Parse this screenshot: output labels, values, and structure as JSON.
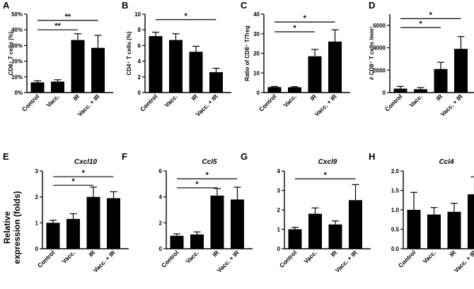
{
  "figure": {
    "shared_ylabel_line1": "Relative",
    "shared_ylabel_line2": "expression (folds)",
    "bar_color": "#000000"
  },
  "chart_data": [
    {
      "panel": "A",
      "type": "bar",
      "title": "",
      "ylabel": "CD8⁺ T cells (%)",
      "categories": [
        "Control",
        "Vacc.",
        "IR",
        "Vacc. + IR"
      ],
      "values": [
        6.5,
        7,
        33.5,
        28.5
      ],
      "errors": [
        1,
        1.2,
        4,
        8
      ],
      "ylim": [
        0,
        50
      ],
      "ticks": [
        0,
        10,
        20,
        30,
        40,
        50
      ],
      "tick_suffix": "%",
      "significance": [
        {
          "from": 0,
          "to": 3,
          "label": "**",
          "y": 46
        },
        {
          "from": 0,
          "to": 2,
          "label": "**",
          "y": 40
        }
      ]
    },
    {
      "panel": "B",
      "type": "bar",
      "title": "",
      "ylabel": "CD4⁺ T cells (%)",
      "categories": [
        "Control",
        "Vacc.",
        "IR",
        "Vacc. + IR"
      ],
      "values": [
        7.2,
        6.7,
        5.2,
        2.6
      ],
      "errors": [
        0.5,
        0.8,
        0.7,
        0.5
      ],
      "ylim": [
        0,
        10
      ],
      "ticks": [
        0,
        2,
        4,
        6,
        8,
        10
      ],
      "tick_suffix": "",
      "significance": [
        {
          "from": 0,
          "to": 3,
          "label": "*",
          "y": 9.3
        }
      ]
    },
    {
      "panel": "C",
      "type": "bar",
      "title": "",
      "ylabel": "Ratio of CD8⁺ T/Treg",
      "categories": [
        "Control",
        "Vacc.",
        "IR",
        "Vacc. + IR"
      ],
      "values": [
        2.8,
        2.7,
        18.5,
        26
      ],
      "errors": [
        0.3,
        0.3,
        3.5,
        6
      ],
      "ylim": [
        0,
        40
      ],
      "ticks": [
        0,
        10,
        20,
        30,
        40
      ],
      "tick_suffix": "",
      "significance": [
        {
          "from": 0,
          "to": 3,
          "label": "*",
          "y": 36
        },
        {
          "from": 0,
          "to": 2,
          "label": "*",
          "y": 31
        }
      ]
    },
    {
      "panel": "D",
      "type": "bar",
      "title": "",
      "ylabel": "# CD8⁺ T cells /mm³",
      "categories": [
        "Control",
        "Vacc.",
        "IR",
        "Vacc. + IR"
      ],
      "values": [
        350,
        300,
        2100,
        3900
      ],
      "errors": [
        200,
        150,
        600,
        1100
      ],
      "ylim": [
        0,
        7000
      ],
      "ticks": [
        0,
        2000,
        4000,
        6000
      ],
      "tick_suffix": "",
      "significance": [
        {
          "from": 0,
          "to": 3,
          "label": "*",
          "y": 6600
        },
        {
          "from": 0,
          "to": 2,
          "label": "*",
          "y": 5800
        }
      ]
    },
    {
      "panel": "E",
      "type": "bar",
      "title": "Cxcl10",
      "ylabel": "",
      "categories": [
        "Control",
        "Vacc.",
        "IR",
        "Vacc. + IR"
      ],
      "values": [
        1.0,
        1.15,
        2.0,
        1.95
      ],
      "errors": [
        0.1,
        0.2,
        0.38,
        0.25
      ],
      "ylim": [
        0,
        3
      ],
      "ticks": [
        0,
        1,
        2,
        3
      ],
      "tick_suffix": "",
      "significance": [
        {
          "from": 0,
          "to": 3,
          "label": "*",
          "y": 2.78
        },
        {
          "from": 0,
          "to": 2,
          "label": "*",
          "y": 2.45
        }
      ]
    },
    {
      "panel": "F",
      "type": "bar",
      "title": "Ccl5",
      "ylabel": "",
      "categories": [
        "Control",
        "Vacc.",
        "IR",
        "Vacc. + IR"
      ],
      "values": [
        1.0,
        1.1,
        4.1,
        3.8
      ],
      "errors": [
        0.15,
        0.2,
        0.55,
        0.95
      ],
      "ylim": [
        0,
        6
      ],
      "ticks": [
        0,
        2,
        4,
        6
      ],
      "tick_suffix": "",
      "significance": [
        {
          "from": 0,
          "to": 3,
          "label": "*",
          "y": 5.4
        },
        {
          "from": 0,
          "to": 2,
          "label": "*",
          "y": 4.7
        }
      ]
    },
    {
      "panel": "G",
      "type": "bar",
      "title": "Cxcl9",
      "ylabel": "",
      "categories": [
        "Control",
        "Vacc.",
        "IR",
        "Vacc. + IR"
      ],
      "values": [
        1.0,
        1.8,
        1.25,
        2.5
      ],
      "errors": [
        0.1,
        0.3,
        0.18,
        0.8
      ],
      "ylim": [
        0,
        4
      ],
      "ticks": [
        0,
        1,
        2,
        3,
        4
      ],
      "tick_suffix": "",
      "significance": [
        {
          "from": 0,
          "to": 3,
          "label": "*",
          "y": 3.6
        }
      ]
    },
    {
      "panel": "H",
      "type": "bar",
      "title": "Ccl4",
      "ylabel": "",
      "categories": [
        "Control",
        "Vacc.",
        "IR",
        "Vacc. + IR"
      ],
      "values": [
        1.0,
        0.88,
        0.95,
        1.4
      ],
      "errors": [
        0.45,
        0.18,
        0.22,
        0.45
      ],
      "ylim": [
        0,
        2
      ],
      "ticks": [
        0,
        0.5,
        1,
        1.5,
        2
      ],
      "tick_labels": [
        "0.0",
        "0.5",
        "1.0",
        "1.5",
        "2.0"
      ],
      "tick_suffix": "",
      "significance": []
    }
  ]
}
